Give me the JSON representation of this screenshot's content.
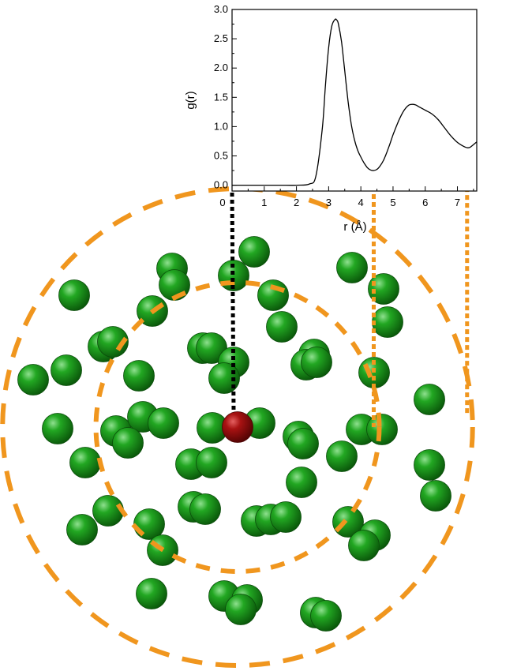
{
  "chart_data": {
    "type": "line",
    "xlabel": "r (Å)",
    "ylabel": "g(r)",
    "xlim": [
      0,
      7.6
    ],
    "ylim": [
      -0.1,
      3.0
    ],
    "x_ticks": [
      "0",
      "1",
      "2",
      "3",
      "4",
      "5",
      "6",
      "7"
    ],
    "y_ticks": [
      "0.0",
      "0.5",
      "1.0",
      "1.5",
      "2.0",
      "2.5",
      "3.0"
    ],
    "grid": false,
    "series": [
      {
        "x": [
          0,
          0.5,
          1.0,
          1.5,
          2.0,
          2.4,
          2.6,
          2.8,
          2.9,
          3.0,
          3.1,
          3.2,
          3.25,
          3.3,
          3.4,
          3.5,
          3.6,
          3.7,
          3.8,
          3.9,
          4.0,
          4.1,
          4.2,
          4.3,
          4.4,
          4.5,
          4.6,
          4.7,
          4.8,
          4.9,
          5.0,
          5.1,
          5.2,
          5.3,
          5.4,
          5.5,
          5.6,
          5.7,
          5.8,
          6.0,
          6.2,
          6.4,
          6.6,
          6.8,
          7.0,
          7.2,
          7.3,
          7.4,
          7.6
        ],
        "y": [
          0,
          0,
          0,
          0,
          0,
          0.02,
          0.15,
          0.95,
          1.7,
          2.35,
          2.72,
          2.83,
          2.82,
          2.76,
          2.45,
          1.95,
          1.45,
          1.05,
          0.78,
          0.6,
          0.48,
          0.38,
          0.3,
          0.26,
          0.25,
          0.27,
          0.33,
          0.42,
          0.55,
          0.7,
          0.86,
          1.0,
          1.13,
          1.24,
          1.32,
          1.37,
          1.38,
          1.37,
          1.34,
          1.28,
          1.22,
          1.12,
          0.98,
          0.84,
          0.73,
          0.66,
          0.64,
          0.65,
          0.74
        ]
      }
    ]
  },
  "diagram": {
    "colors": {
      "shell": "#f0961e",
      "atom": "#1e9a1e",
      "center_atom": "#a01010",
      "guide_black": "#000000",
      "line": "#000000"
    },
    "shell_radii_angstrom": [
      4.4,
      7.3
    ]
  }
}
